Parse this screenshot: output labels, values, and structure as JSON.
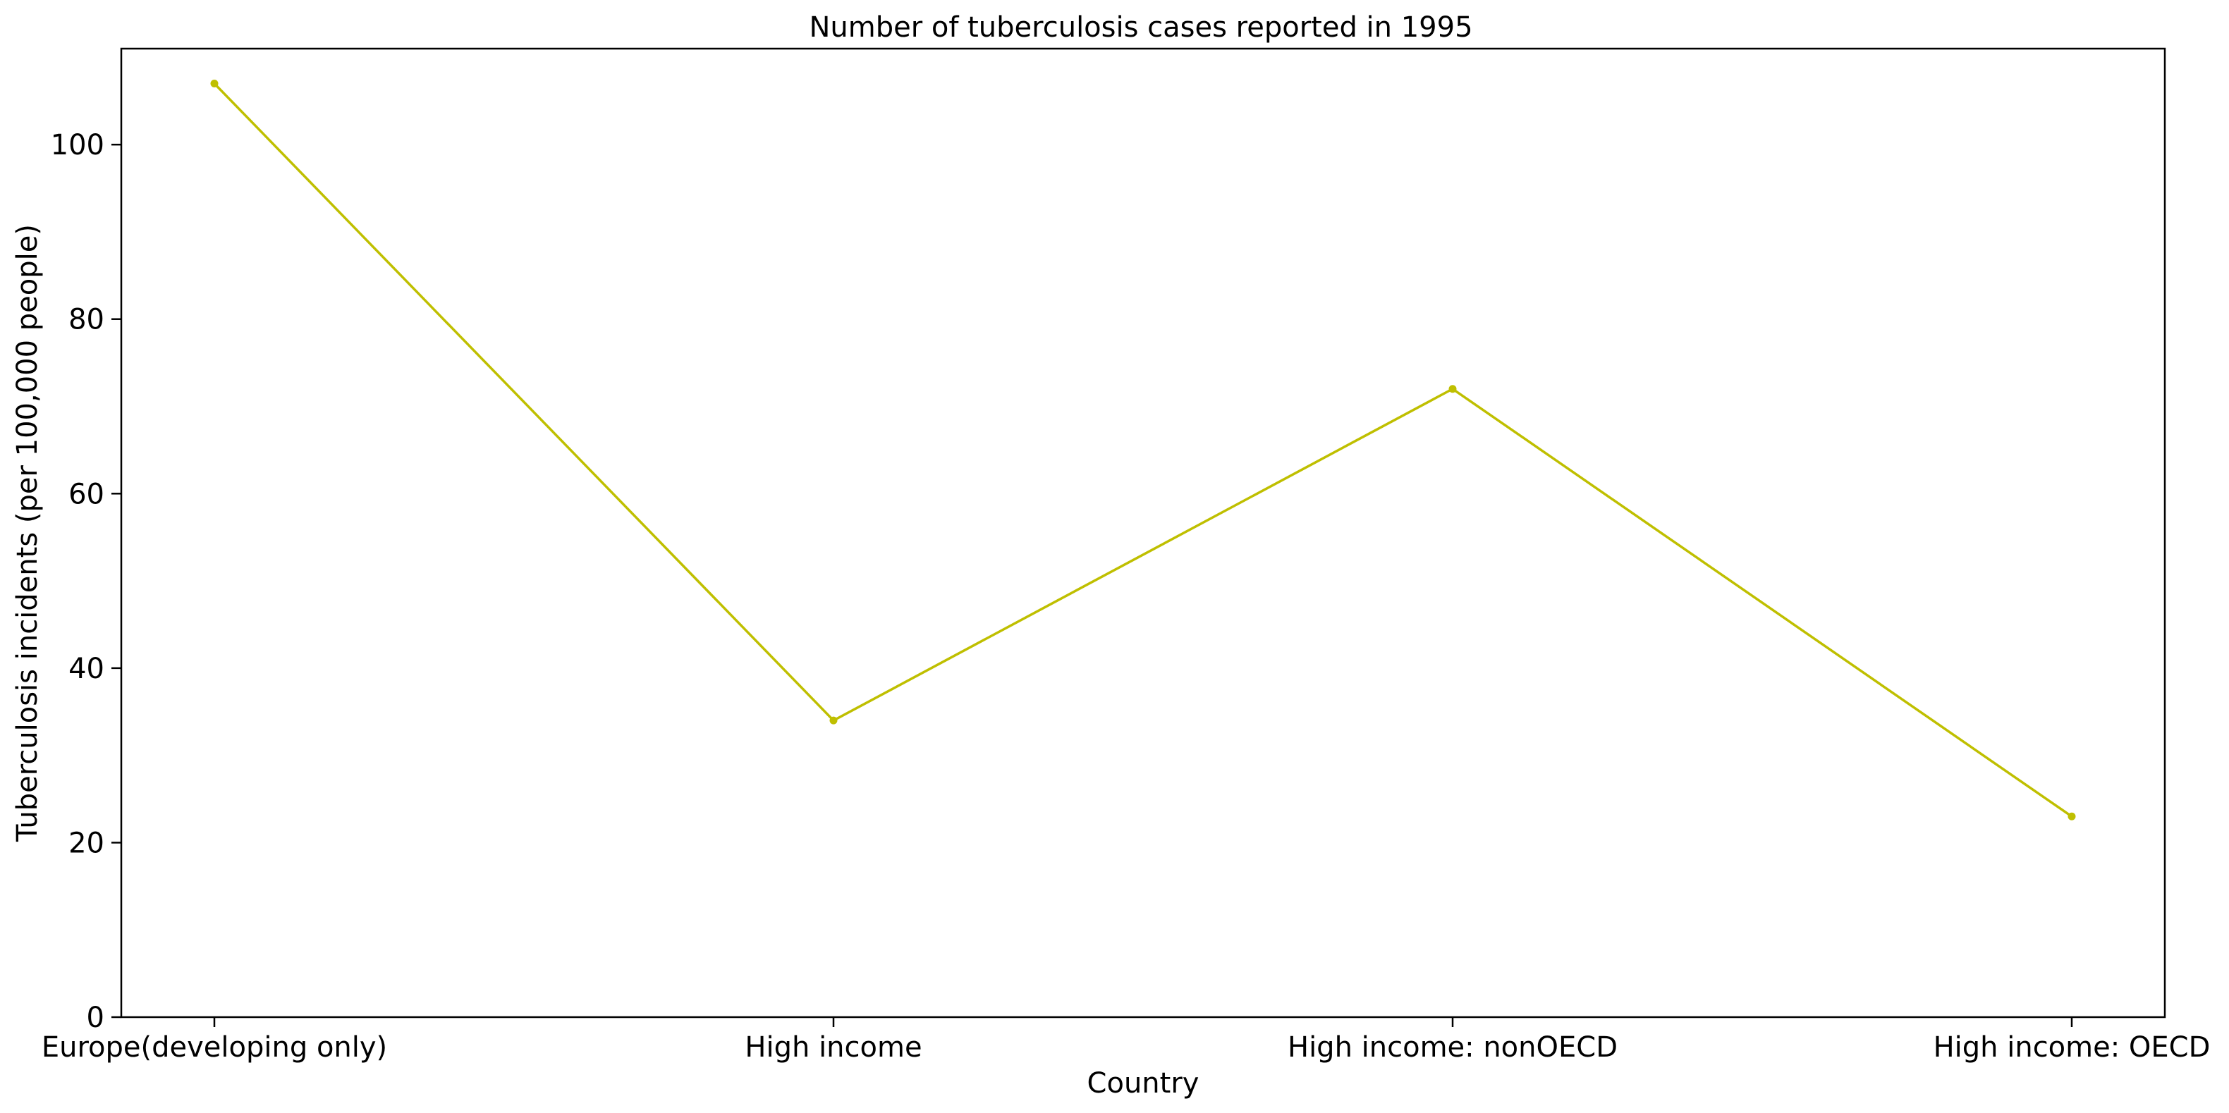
{
  "chart_data": {
    "type": "line",
    "title": "Number of tuberculosis cases reported in 1995",
    "xlabel": "Country",
    "ylabel": "Tuberculosis incidents (per 100,000 people)",
    "categories": [
      "Europe(developing only)",
      "High income",
      "High income: nonOECD",
      "High income: OECD"
    ],
    "series": [
      {
        "values": [
          107,
          34,
          72,
          23
        ],
        "color": "#bfbf00",
        "marker": "circle"
      }
    ],
    "ylim": [
      0,
      111
    ],
    "yticks": [
      0,
      20,
      40,
      60,
      80,
      100
    ],
    "ytick_labels": [
      "0",
      "20",
      "40",
      "60",
      "80",
      "100"
    ],
    "grid": false,
    "legend": "none"
  }
}
